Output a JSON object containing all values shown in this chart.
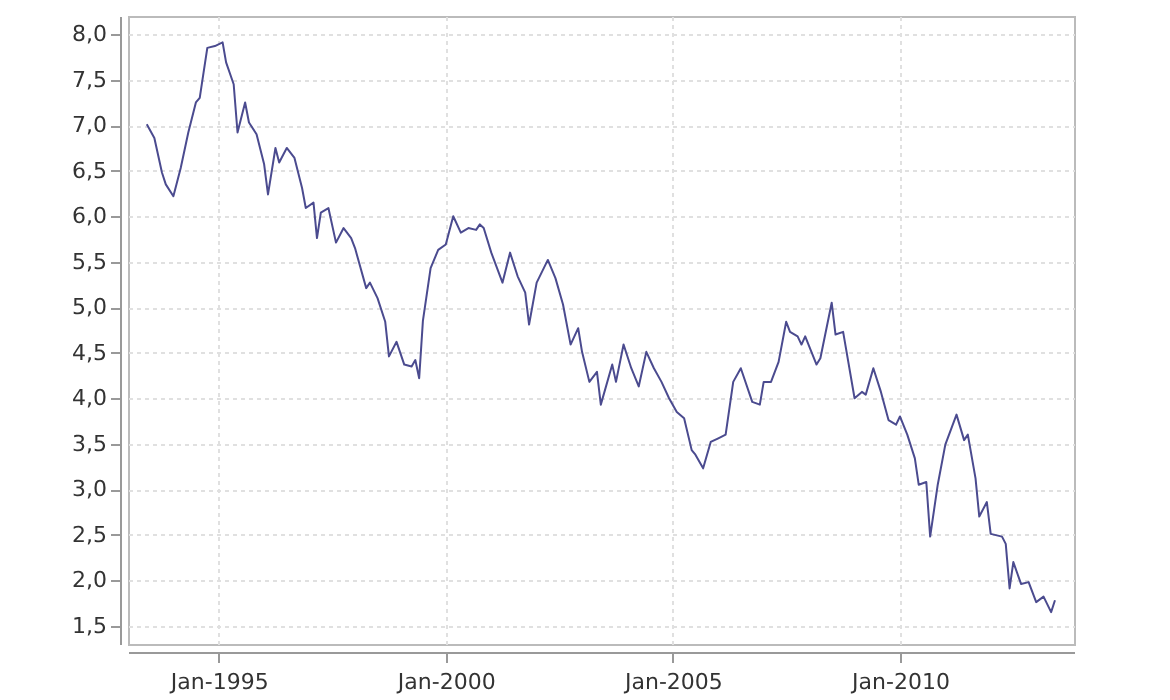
{
  "chart_data": {
    "type": "line",
    "x": [
      "1993-06",
      "1993-08",
      "1993-10",
      "1993-11",
      "1994-01",
      "1994-03",
      "1994-05",
      "1994-07",
      "1994-08",
      "1994-09",
      "1994-10",
      "1994-12",
      "1995-02",
      "1995-03",
      "1995-05",
      "1995-06",
      "1995-08",
      "1995-09",
      "1995-11",
      "1996-01",
      "1996-02",
      "1996-04",
      "1996-05",
      "1996-07",
      "1996-09",
      "1996-11",
      "1996-12",
      "1997-02",
      "1997-03",
      "1997-04",
      "1997-06",
      "1997-08",
      "1997-10",
      "1997-12",
      "1998-01",
      "1998-04",
      "1998-05",
      "1998-07",
      "1998-09",
      "1998-10",
      "1998-12",
      "1999-02",
      "1999-04",
      "1999-05",
      "1999-06",
      "1999-07",
      "1999-09",
      "1999-11",
      "2000-01",
      "2000-03",
      "2000-05",
      "2000-07",
      "2000-09",
      "2000-10",
      "2000-11",
      "2001-01",
      "2001-04",
      "2001-06",
      "2001-08",
      "2001-10",
      "2001-11",
      "2002-01",
      "2002-04",
      "2002-06",
      "2002-08",
      "2002-10",
      "2002-12",
      "2003-01",
      "2003-03",
      "2003-05",
      "2003-06",
      "2003-09",
      "2003-10",
      "2003-12",
      "2004-02",
      "2004-04",
      "2004-06",
      "2004-08",
      "2004-10",
      "2004-12",
      "2005-02",
      "2005-04",
      "2005-06",
      "2005-07",
      "2005-09",
      "2005-11",
      "2006-01",
      "2006-03",
      "2006-05",
      "2006-07",
      "2006-10",
      "2006-12",
      "2007-01",
      "2007-03",
      "2007-05",
      "2007-07",
      "2007-08",
      "2007-10",
      "2007-11",
      "2007-12",
      "2008-03",
      "2008-04",
      "2008-07",
      "2008-08",
      "2008-10",
      "2009-01",
      "2009-03",
      "2009-04",
      "2009-06",
      "2009-08",
      "2009-10",
      "2009-12",
      "2010-01",
      "2010-03",
      "2010-05",
      "2010-06",
      "2010-08",
      "2010-09",
      "2010-11",
      "2011-01",
      "2011-04",
      "2011-06",
      "2011-07",
      "2011-09",
      "2011-10",
      "2011-12",
      "2012-01",
      "2012-04",
      "2012-05",
      "2012-06",
      "2012-07",
      "2012-09",
      "2012-11",
      "2013-01",
      "2013-03",
      "2013-05",
      "2013-06"
    ],
    "series": [
      {
        "color": "#4b4b8f",
        "values": [
          7.01,
          6.86,
          6.48,
          6.35,
          6.22,
          6.53,
          6.92,
          7.25,
          7.3,
          7.58,
          7.85,
          7.87,
          7.91,
          7.69,
          7.45,
          6.92,
          7.25,
          7.03,
          6.9,
          6.57,
          6.24,
          6.75,
          6.59,
          6.75,
          6.64,
          6.31,
          6.09,
          6.15,
          5.76,
          6.04,
          6.09,
          5.71,
          5.87,
          5.76,
          5.65,
          5.21,
          5.27,
          5.1,
          4.84,
          4.46,
          4.62,
          4.37,
          4.35,
          4.42,
          4.22,
          4.85,
          5.43,
          5.63,
          5.69,
          6.0,
          5.82,
          5.87,
          5.85,
          5.91,
          5.87,
          5.6,
          5.27,
          5.6,
          5.34,
          5.16,
          4.81,
          5.27,
          5.52,
          5.32,
          5.03,
          4.59,
          4.77,
          4.51,
          4.18,
          4.29,
          3.93,
          4.37,
          4.18,
          4.59,
          4.33,
          4.13,
          4.51,
          4.33,
          4.18,
          4.0,
          3.85,
          3.78,
          3.43,
          3.38,
          3.23,
          3.52,
          3.56,
          3.6,
          4.18,
          4.33,
          3.96,
          3.93,
          4.18,
          4.18,
          4.4,
          4.84,
          4.73,
          4.68,
          4.59,
          4.68,
          4.37,
          4.44,
          5.05,
          4.7,
          4.73,
          4.0,
          4.07,
          4.04,
          4.33,
          4.07,
          3.76,
          3.71,
          3.8,
          3.6,
          3.34,
          3.05,
          3.08,
          2.48,
          3.05,
          3.49,
          3.82,
          3.54,
          3.6,
          3.12,
          2.7,
          2.86,
          2.51,
          2.48,
          2.4,
          1.91,
          2.2,
          1.96,
          1.98,
          1.76,
          1.82,
          1.65,
          1.78
        ]
      }
    ],
    "xlim": [
      "1993-01",
      "2013-11"
    ],
    "xticks": [
      {
        "value": "1995-01",
        "label": "Jan-1995"
      },
      {
        "value": "2000-01",
        "label": "Jan-2000"
      },
      {
        "value": "2005-01",
        "label": "Jan-2005"
      },
      {
        "value": "2010-01",
        "label": "Jan-2010"
      }
    ],
    "ylim": [
      1.3,
      8.2
    ],
    "yticks": [
      {
        "value": 1.5,
        "label": "1,5"
      },
      {
        "value": 2,
        "label": "2,0"
      },
      {
        "value": 2.5,
        "label": "2,5"
      },
      {
        "value": 3,
        "label": "3,0"
      },
      {
        "value": 3.5,
        "label": "3,5"
      },
      {
        "value": 4,
        "label": "4,0"
      },
      {
        "value": 4.5,
        "label": "4,5"
      },
      {
        "value": 5,
        "label": "5,0"
      },
      {
        "value": 5.5,
        "label": "5,5"
      },
      {
        "value": 6,
        "label": "6,0"
      },
      {
        "value": 6.5,
        "label": "6,5"
      },
      {
        "value": 7,
        "label": "7,0"
      },
      {
        "value": 7.5,
        "label": "7,5"
      },
      {
        "value": 8,
        "label": "8,0"
      }
    ],
    "grid": true
  }
}
